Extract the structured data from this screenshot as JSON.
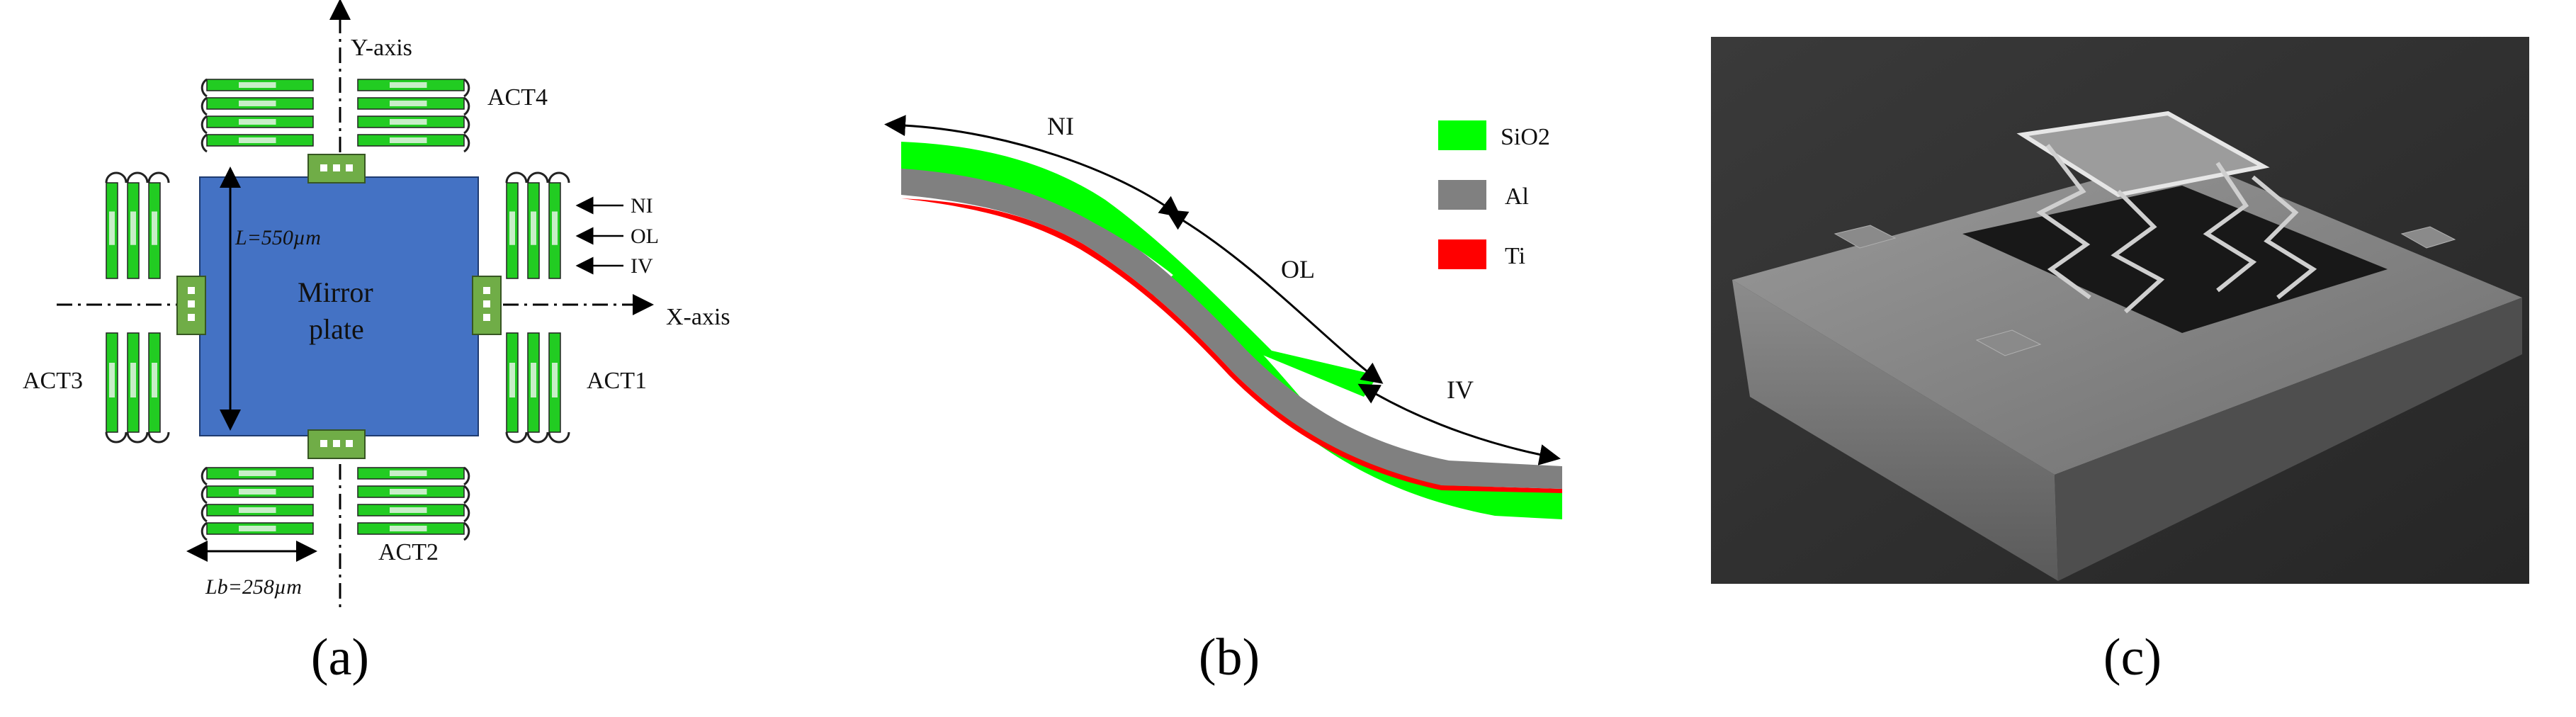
{
  "panel_a": {
    "y_axis_label": "Y-axis",
    "x_axis_label": "X-axis",
    "mirror_line1": "Mirror",
    "mirror_line2": "plate",
    "length_label": "L=550µm",
    "beam_length_label": "Lb=258µm",
    "actuators": [
      "ACT1",
      "ACT2",
      "ACT3",
      "ACT4"
    ],
    "layer_labels": [
      "NI",
      "OL",
      "IV"
    ],
    "colors": {
      "mirror": "#4472c4",
      "anchor": "#70ad47",
      "beam_green": "#22cc22",
      "beam_light": "#c8eec8"
    }
  },
  "panel_b": {
    "segment_labels": [
      "NI",
      "OL",
      "IV"
    ],
    "legend": [
      {
        "label": "SiO2",
        "color": "#00ff00"
      },
      {
        "label": "Al",
        "color": "#808080"
      },
      {
        "label": "Ti",
        "color": "#ff0000"
      }
    ]
  },
  "panel_c": {
    "image": "sem-micrograph-mems-mirror"
  },
  "captions": [
    "(a)",
    "(b)",
    "(c)"
  ]
}
